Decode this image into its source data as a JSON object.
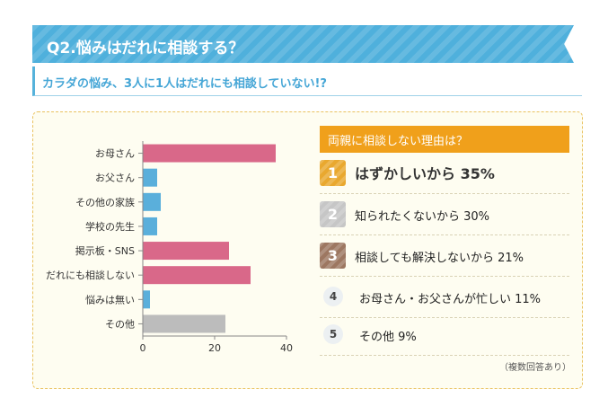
{
  "header": {
    "title": "Q2.悩みはだれに相談する？"
  },
  "subtitle": "カラダの悩み、3人に1人はだれにも相談していない!?",
  "chart_data": {
    "type": "bar",
    "orientation": "horizontal",
    "categories": [
      "お母さん",
      "お父さん",
      "その他の家族",
      "学校の先生",
      "掲示板・SNS",
      "だれにも相談しない",
      "悩みは無い",
      "その他"
    ],
    "values": [
      37,
      4,
      5,
      4,
      24,
      30,
      2,
      23
    ],
    "colors": [
      "#d96889",
      "#5aafdb",
      "#5aafdb",
      "#5aafdb",
      "#d96889",
      "#d96889",
      "#5aafdb",
      "#bcbcbc"
    ],
    "xticks": [
      0,
      20,
      40
    ],
    "xlim": [
      0,
      40
    ],
    "grid": false
  },
  "reasons": {
    "title": "両親に相談しない理由は？",
    "items": [
      {
        "rank": "1",
        "text": "はずかしいから 35%",
        "medal": "gold"
      },
      {
        "rank": "2",
        "text": "知られたくないから 30%",
        "medal": "silver"
      },
      {
        "rank": "3",
        "text": "相談しても解決しないから 21%",
        "medal": "bronze"
      },
      {
        "rank": "4",
        "text": "お母さん・お父さんが忙しい 11%",
        "medal": "plain"
      },
      {
        "rank": "5",
        "text": "その他 9%",
        "medal": "plain"
      }
    ]
  },
  "note": "（複数回答あり）"
}
